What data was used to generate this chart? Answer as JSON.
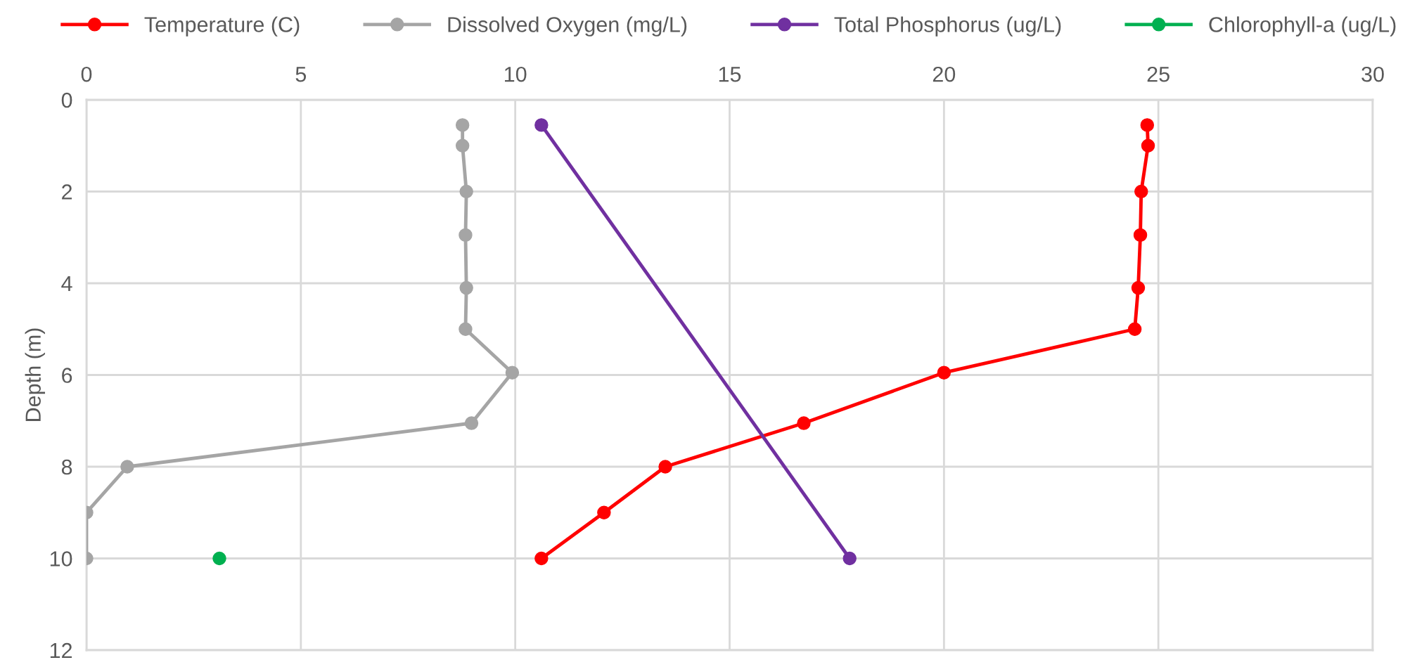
{
  "chart_data": {
    "type": "line",
    "ylabel": "Depth (m)",
    "xlim": [
      0,
      30
    ],
    "xticks": [
      0,
      5,
      10,
      15,
      20,
      25,
      30
    ],
    "ylim": [
      12,
      0
    ],
    "yticks": [
      0,
      2,
      4,
      6,
      8,
      10,
      12
    ],
    "grid": true,
    "legend": "top",
    "marker": "circle",
    "line_style": "solid",
    "series": [
      {
        "name": "Temperature (C)",
        "color": "#ff0000",
        "x": [
          24.74,
          24.76,
          24.6,
          24.58,
          24.53,
          24.45,
          20.0,
          16.73,
          13.5,
          12.07,
          10.61
        ],
        "values": [
          0.55,
          1.0,
          2.0,
          2.95,
          4.1,
          5.0,
          5.95,
          7.05,
          8.0,
          9.0,
          10.0
        ]
      },
      {
        "name": "Dissolved Oxygen (mg/L)",
        "color": "#a5a5a5",
        "x": [
          8.77,
          8.77,
          8.86,
          8.84,
          8.86,
          8.84,
          9.93,
          8.98,
          0.95,
          0,
          0
        ],
        "values": [
          0.55,
          1.0,
          2.0,
          2.95,
          4.1,
          5.0,
          5.95,
          7.05,
          8.0,
          9.0,
          10.0
        ]
      },
      {
        "name": "Total Phosphorus (ug/L)",
        "color": "#7030a0",
        "x": [
          10.61,
          17.8
        ],
        "values": [
          0.55,
          10.0
        ]
      },
      {
        "name": "Chlorophyll-a (ug/L)",
        "color": "#00b050",
        "x": [
          3.1
        ],
        "values": [
          10.0
        ]
      }
    ]
  }
}
